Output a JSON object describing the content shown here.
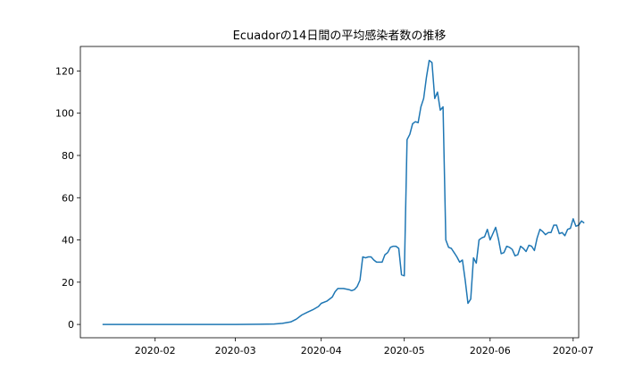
{
  "chart_data": {
    "type": "line",
    "title": "Ecuadorの14日間の平均感染者数の推移",
    "xlabel": "",
    "ylabel": "",
    "x_axis": {
      "type": "date",
      "range": [
        "2020-01-05",
        "2020-07-03"
      ],
      "ticks": [
        {
          "date": "2020-02-01",
          "label": "2020-02"
        },
        {
          "date": "2020-03-01",
          "label": "2020-03"
        },
        {
          "date": "2020-04-01",
          "label": "2020-04"
        },
        {
          "date": "2020-05-01",
          "label": "2020-05"
        },
        {
          "date": "2020-06-01",
          "label": "2020-06"
        },
        {
          "date": "2020-07-01",
          "label": "2020-07"
        }
      ]
    },
    "y_axis": {
      "range": [
        -6.3,
        131.6
      ],
      "ticks": [
        {
          "value": 0,
          "label": "0"
        },
        {
          "value": 20,
          "label": "20"
        },
        {
          "value": 40,
          "label": "40"
        },
        {
          "value": 60,
          "label": "60"
        },
        {
          "value": 80,
          "label": "80"
        },
        {
          "value": 100,
          "label": "100"
        },
        {
          "value": 120,
          "label": "120"
        }
      ]
    },
    "grid": false,
    "series": [
      {
        "color": "#1f77b4",
        "points": [
          [
            "2020-01-13",
            0
          ],
          [
            "2020-01-20",
            0
          ],
          [
            "2020-02-01",
            0
          ],
          [
            "2020-02-15",
            0
          ],
          [
            "2020-03-01",
            0
          ],
          [
            "2020-03-10",
            0.1
          ],
          [
            "2020-03-15",
            0.2
          ],
          [
            "2020-03-18",
            0.5
          ],
          [
            "2020-03-21",
            1.2
          ],
          [
            "2020-03-23",
            2.5
          ],
          [
            "2020-03-25",
            4.5
          ],
          [
            "2020-03-27",
            5.8
          ],
          [
            "2020-03-29",
            7.0
          ],
          [
            "2020-03-31",
            8.5
          ],
          [
            "2020-04-01",
            10.0
          ],
          [
            "2020-04-03",
            11.0
          ],
          [
            "2020-04-05",
            13.0
          ],
          [
            "2020-04-06",
            15.5
          ],
          [
            "2020-04-07",
            17.0
          ],
          [
            "2020-04-09",
            17.0
          ],
          [
            "2020-04-11",
            16.5
          ],
          [
            "2020-04-12",
            16.0
          ],
          [
            "2020-04-13",
            16.5
          ],
          [
            "2020-04-14",
            18.0
          ],
          [
            "2020-04-15",
            21.0
          ],
          [
            "2020-04-16",
            32.0
          ],
          [
            "2020-04-17",
            31.5
          ],
          [
            "2020-04-18",
            32.0
          ],
          [
            "2020-04-19",
            32.0
          ],
          [
            "2020-04-20",
            30.5
          ],
          [
            "2020-04-21",
            29.5
          ],
          [
            "2020-04-22",
            29.5
          ],
          [
            "2020-04-23",
            29.5
          ],
          [
            "2020-04-24",
            33.0
          ],
          [
            "2020-04-25",
            34.0
          ],
          [
            "2020-04-26",
            36.5
          ],
          [
            "2020-04-27",
            37.0
          ],
          [
            "2020-04-28",
            37.0
          ],
          [
            "2020-04-29",
            36.0
          ],
          [
            "2020-04-30",
            23.5
          ],
          [
            "2020-05-01",
            23.0
          ],
          [
            "2020-05-02",
            87.5
          ],
          [
            "2020-05-03",
            90.0
          ],
          [
            "2020-05-04",
            95.0
          ],
          [
            "2020-05-05",
            96.0
          ],
          [
            "2020-05-06",
            95.5
          ],
          [
            "2020-05-07",
            103.0
          ],
          [
            "2020-05-08",
            107.0
          ],
          [
            "2020-05-09",
            117.0
          ],
          [
            "2020-05-10",
            125.0
          ],
          [
            "2020-05-11",
            124.0
          ],
          [
            "2020-05-12",
            107.0
          ],
          [
            "2020-05-13",
            110.0
          ],
          [
            "2020-05-14",
            101.5
          ],
          [
            "2020-05-15",
            103.0
          ],
          [
            "2020-05-16",
            40.0
          ],
          [
            "2020-05-17",
            36.5
          ],
          [
            "2020-05-18",
            36.0
          ],
          [
            "2020-05-19",
            34.0
          ],
          [
            "2020-05-20",
            32.0
          ],
          [
            "2020-05-21",
            29.5
          ],
          [
            "2020-05-22",
            30.5
          ],
          [
            "2020-05-23",
            21.0
          ],
          [
            "2020-05-24",
            10.0
          ],
          [
            "2020-05-25",
            12.0
          ],
          [
            "2020-05-26",
            31.5
          ],
          [
            "2020-05-27",
            29.0
          ],
          [
            "2020-05-28",
            40.0
          ],
          [
            "2020-05-29",
            41.0
          ],
          [
            "2020-05-30",
            41.5
          ],
          [
            "2020-05-31",
            45.0
          ],
          [
            "2020-06-01",
            40.0
          ],
          [
            "2020-06-02",
            43.0
          ],
          [
            "2020-06-03",
            46.0
          ],
          [
            "2020-06-04",
            40.5
          ],
          [
            "2020-06-05",
            33.5
          ],
          [
            "2020-06-06",
            34.0
          ],
          [
            "2020-06-07",
            37.0
          ],
          [
            "2020-06-08",
            36.5
          ],
          [
            "2020-06-09",
            35.5
          ],
          [
            "2020-06-10",
            32.5
          ],
          [
            "2020-06-11",
            33.0
          ],
          [
            "2020-06-12",
            37.0
          ],
          [
            "2020-06-13",
            36.0
          ],
          [
            "2020-06-14",
            34.5
          ],
          [
            "2020-06-15",
            37.5
          ],
          [
            "2020-06-16",
            37.0
          ],
          [
            "2020-06-17",
            35.0
          ],
          [
            "2020-06-18",
            41.0
          ],
          [
            "2020-06-19",
            45.0
          ],
          [
            "2020-06-20",
            44.0
          ],
          [
            "2020-06-21",
            42.5
          ],
          [
            "2020-06-22",
            43.5
          ],
          [
            "2020-06-23",
            43.5
          ],
          [
            "2020-06-24",
            47.0
          ],
          [
            "2020-06-25",
            47.0
          ],
          [
            "2020-06-26",
            43.0
          ],
          [
            "2020-06-27",
            43.5
          ],
          [
            "2020-06-28",
            42.0
          ],
          [
            "2020-06-29",
            45.0
          ],
          [
            "2020-06-30",
            45.5
          ],
          [
            "2020-07-01",
            50.0
          ],
          [
            "2020-07-02",
            46.5
          ],
          [
            "2020-07-03",
            47.0
          ],
          [
            "2020-07-04",
            49.0
          ],
          [
            "2020-07-05",
            48.0
          ]
        ]
      }
    ]
  }
}
